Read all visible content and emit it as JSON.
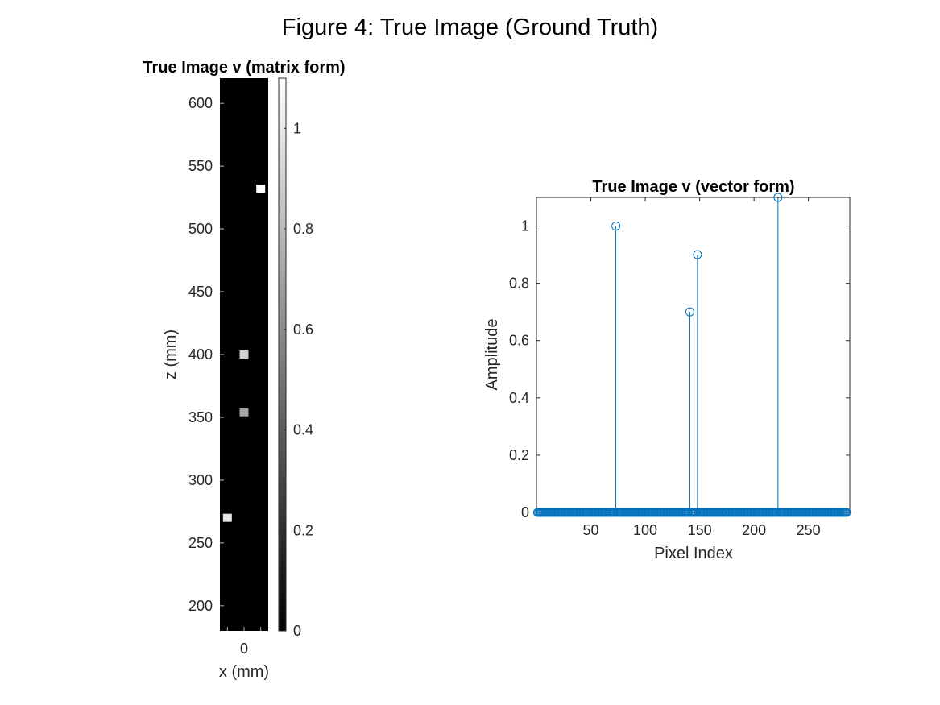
{
  "figure_title": "Figure 4: True Image (Ground Truth)",
  "chart_data": [
    {
      "type": "heatmap",
      "title": "True Image v (matrix form)",
      "xlabel": "x (mm)",
      "ylabel": "z (mm)",
      "colormap": "gray",
      "color_range": [
        0,
        1.1
      ],
      "colorbar_ticks": [
        0,
        0.2,
        0.4,
        0.6,
        0.8,
        1
      ],
      "x_ticks": [
        0
      ],
      "y_ticks": [
        200,
        250,
        300,
        350,
        400,
        450,
        500,
        550,
        600
      ],
      "xlim": [
        -14.5,
        14.5
      ],
      "ylim": [
        180,
        620
      ],
      "background_value": 0,
      "pixels": [
        {
          "x": -10,
          "z": 270,
          "value": 1.0
        },
        {
          "x": 0,
          "z": 354,
          "value": 0.7
        },
        {
          "x": 0,
          "z": 400,
          "value": 0.9
        },
        {
          "x": 10,
          "z": 532,
          "value": 1.1
        }
      ]
    },
    {
      "type": "stem",
      "title": "True Image v (vector form)",
      "xlabel": "Pixel Index",
      "ylabel": "Amplitude",
      "xlim": [
        0,
        288
      ],
      "ylim": [
        0,
        1.1
      ],
      "x_ticks": [
        50,
        100,
        150,
        200,
        250
      ],
      "y_ticks": [
        0,
        0.2,
        0.4,
        0.6,
        0.8,
        1
      ],
      "tick_labels_y": [
        "0",
        "0.2",
        "0.4",
        "0.6",
        "0.8",
        "1"
      ],
      "n_points": 285,
      "color": "#0072BD",
      "nonzero": [
        {
          "x": 73,
          "y": 1.0
        },
        {
          "x": 141,
          "y": 0.7
        },
        {
          "x": 148,
          "y": 0.9
        },
        {
          "x": 222,
          "y": 1.1
        }
      ]
    }
  ]
}
